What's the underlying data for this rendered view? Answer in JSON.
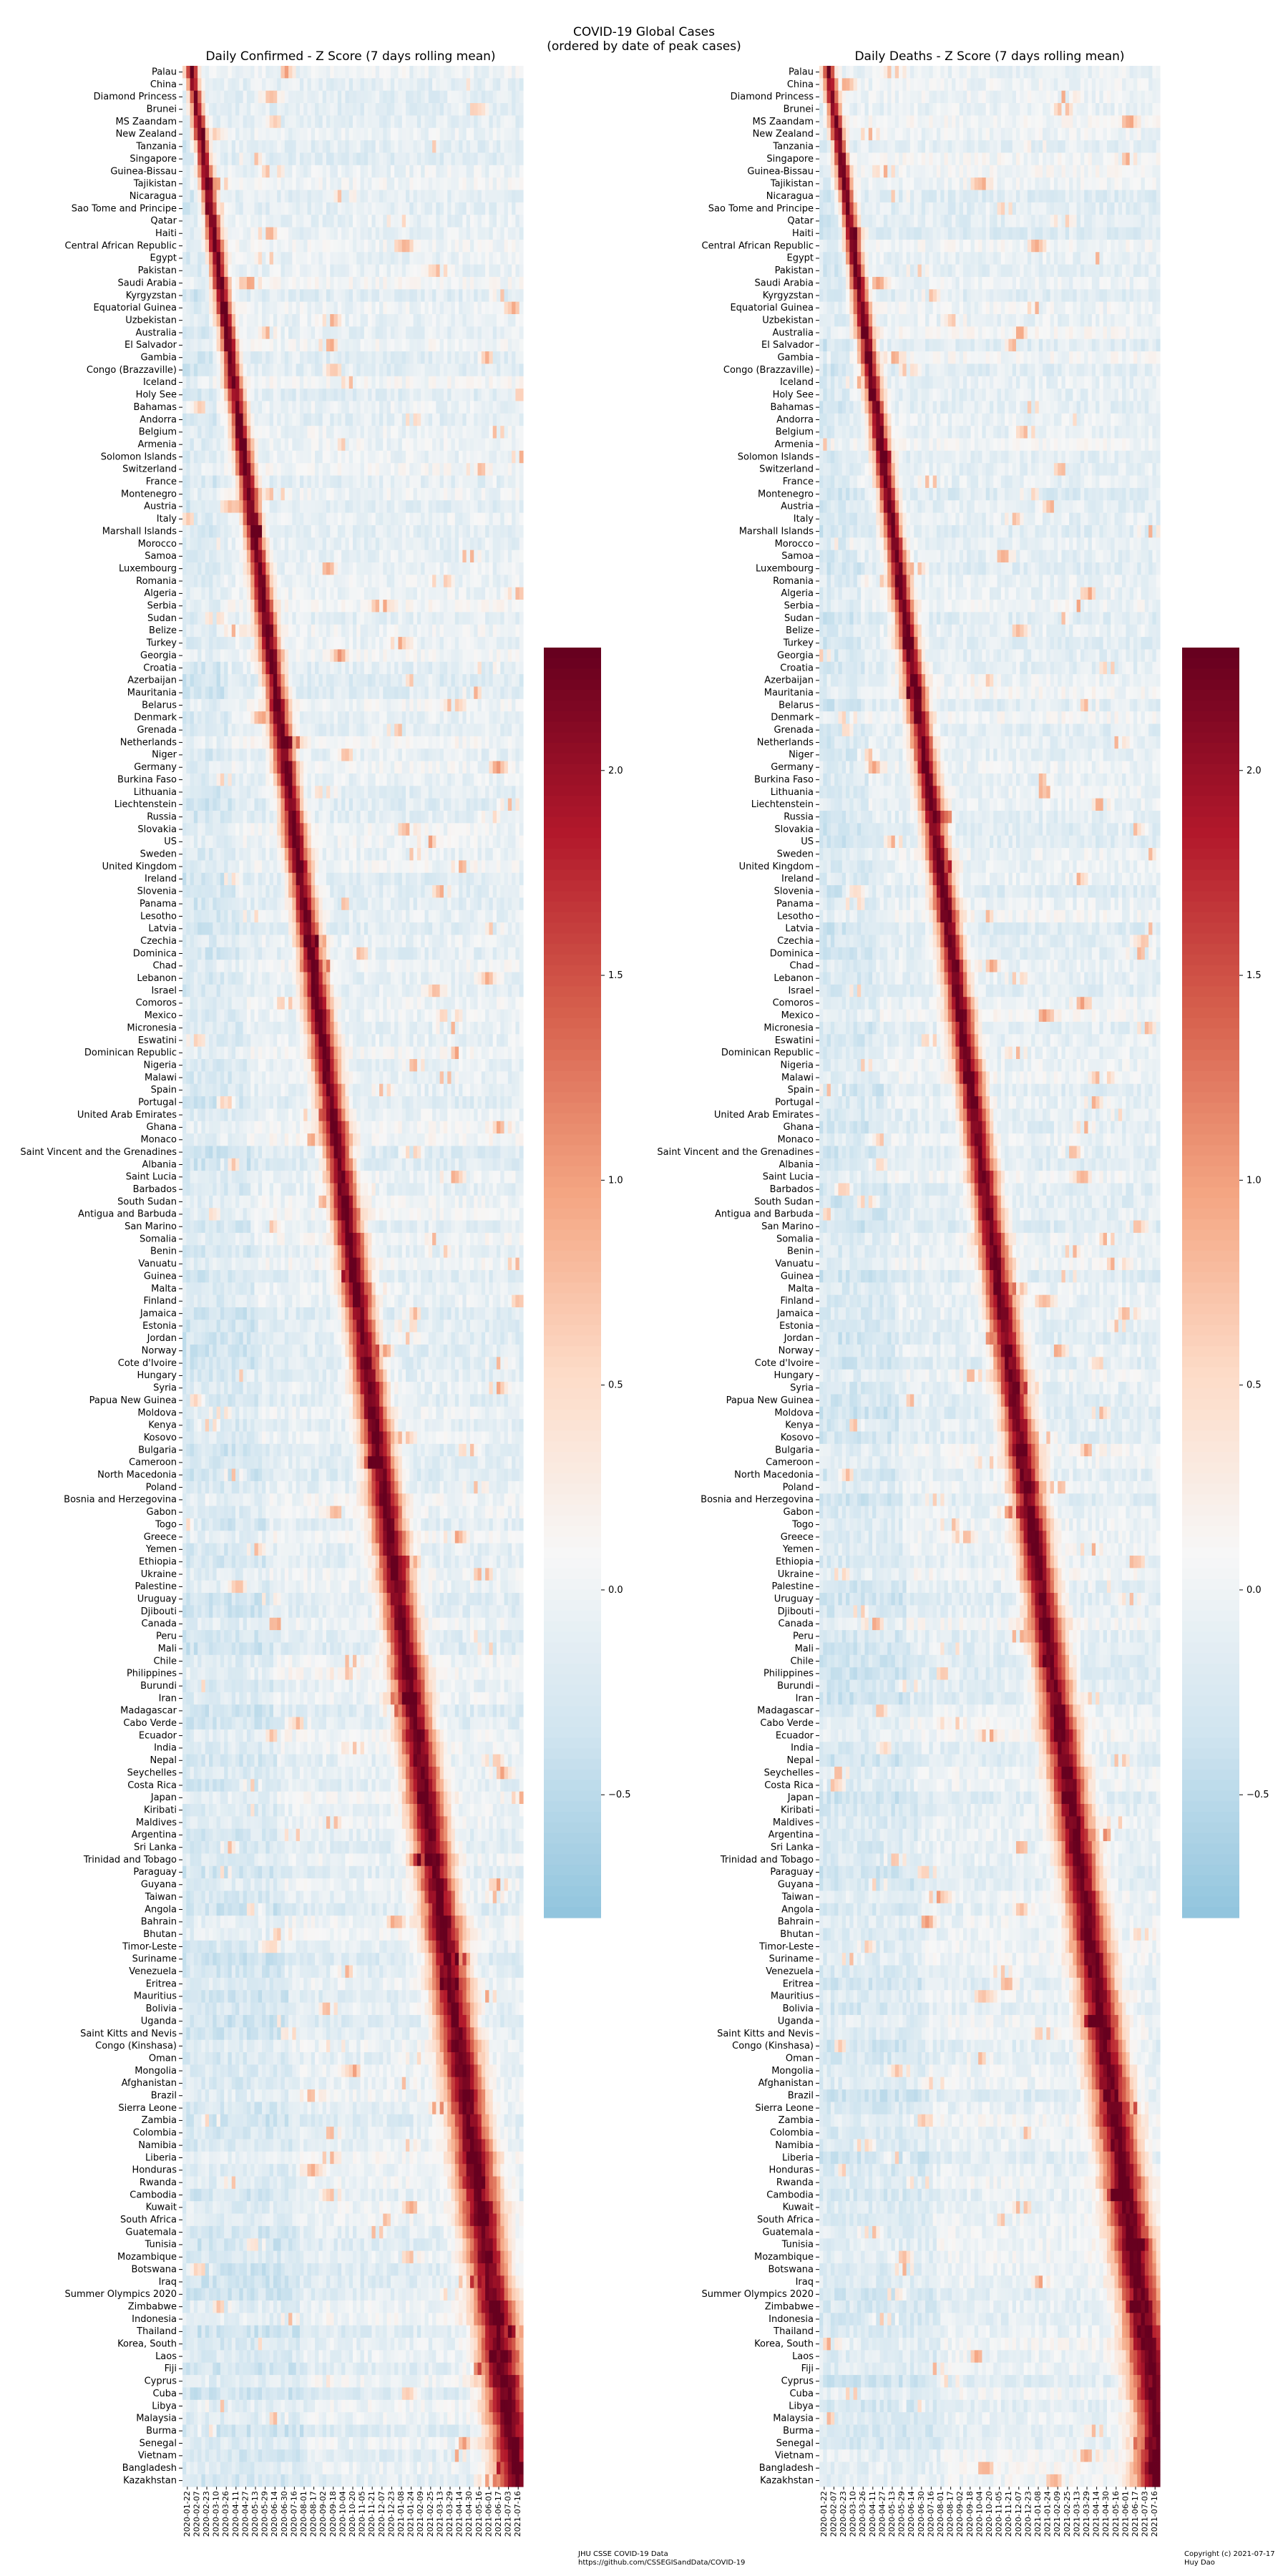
{
  "figure": {
    "suptitle_line1": "COVID-19 Global Cases",
    "suptitle_line2": "(ordered by date of peak cases)",
    "source_line1": "JHU CSSE COVID-19 Data",
    "source_line2": "https://github.com/CSSEGISandData/COVID-19",
    "copyright_line1": "Copyright (c) 2021-07-17",
    "copyright_line2": "Huy Dao"
  },
  "colors": {
    "neg": "#7fb6d5",
    "mid": "#f7f7f7",
    "pos": "#67001f",
    "scale": [
      "#92c5de",
      "#d1e5f0",
      "#f7f7f7",
      "#fddbc7",
      "#f4a582",
      "#d6604d",
      "#b2182b",
      "#67001f"
    ]
  },
  "chart_data": [
    {
      "type": "heatmap",
      "title": "Daily Confirmed - Z Score (7 days rolling mean)",
      "colorbar_ticks": [
        "2.0",
        "1.5",
        "1.0",
        "0.5",
        "0.0",
        "−0.5"
      ],
      "colorbar_values": [
        2.0,
        1.5,
        1.0,
        0.5,
        0.0,
        -0.5
      ],
      "colorbar_range": [
        -0.8,
        2.3
      ],
      "x_tick_labels": [
        "2020-01-22",
        "2020-02-07",
        "2020-02-23",
        "2020-03-10",
        "2020-03-26",
        "2020-04-11",
        "2020-04-27",
        "2020-05-13",
        "2020-05-29",
        "2020-06-14",
        "2020-06-30",
        "2020-07-16",
        "2020-08-01",
        "2020-08-17",
        "2020-09-02",
        "2020-09-18",
        "2020-10-04",
        "2020-10-20",
        "2020-11-05",
        "2020-11-21",
        "2020-12-07",
        "2020-12-23",
        "2021-01-08",
        "2021-01-24",
        "2021-02-09",
        "2021-02-25",
        "2021-03-13",
        "2021-03-29",
        "2021-04-14",
        "2021-04-30",
        "2021-05-16",
        "2021-06-01",
        "2021-06-17",
        "2021-07-03",
        "2021-07-16"
      ]
    },
    {
      "type": "heatmap",
      "title": "Daily Deaths - Z Score (7 days rolling mean)",
      "colorbar_ticks": [
        "2.0",
        "1.5",
        "1.0",
        "0.5",
        "0.0",
        "−0.5"
      ],
      "colorbar_values": [
        2.0,
        1.5,
        1.0,
        0.5,
        0.0,
        -0.5
      ],
      "colorbar_range": [
        -0.8,
        2.3
      ],
      "x_tick_labels": [
        "2020-01-22",
        "2020-02-07",
        "2020-02-23",
        "2020-03-10",
        "2020-03-26",
        "2020-04-11",
        "2020-04-27",
        "2020-05-13",
        "2020-05-29",
        "2020-06-14",
        "2020-06-30",
        "2020-07-16",
        "2020-08-01",
        "2020-08-17",
        "2020-09-02",
        "2020-09-18",
        "2020-10-04",
        "2020-10-20",
        "2020-11-05",
        "2020-11-21",
        "2020-12-07",
        "2020-12-23",
        "2021-01-08",
        "2021-01-24",
        "2021-02-09",
        "2021-02-25",
        "2021-03-13",
        "2021-03-29",
        "2021-04-14",
        "2021-04-30",
        "2021-05-16",
        "2021-06-01",
        "2021-06-17",
        "2021-07-03",
        "2021-07-16"
      ]
    }
  ],
  "rows": [
    "Palau",
    "China",
    "Diamond Princess",
    "Brunei",
    "MS Zaandam",
    "New Zealand",
    "Tanzania",
    "Singapore",
    "Guinea-Bissau",
    "Tajikistan",
    "Nicaragua",
    "Sao Tome and Principe",
    "Qatar",
    "Haiti",
    "Central African Republic",
    "Egypt",
    "Pakistan",
    "Saudi Arabia",
    "Kyrgyzstan",
    "Equatorial Guinea",
    "Uzbekistan",
    "Australia",
    "El Salvador",
    "Gambia",
    "Congo (Brazzaville)",
    "Iceland",
    "Holy See",
    "Bahamas",
    "Andorra",
    "Belgium",
    "Armenia",
    "Solomon Islands",
    "Switzerland",
    "France",
    "Montenegro",
    "Austria",
    "Italy",
    "Marshall Islands",
    "Morocco",
    "Samoa",
    "Luxembourg",
    "Romania",
    "Algeria",
    "Serbia",
    "Sudan",
    "Belize",
    "Turkey",
    "Georgia",
    "Croatia",
    "Azerbaijan",
    "Mauritania",
    "Belarus",
    "Denmark",
    "Grenada",
    "Netherlands",
    "Niger",
    "Germany",
    "Burkina Faso",
    "Lithuania",
    "Liechtenstein",
    "Russia",
    "Slovakia",
    "US",
    "Sweden",
    "United Kingdom",
    "Ireland",
    "Slovenia",
    "Panama",
    "Lesotho",
    "Latvia",
    "Czechia",
    "Dominica",
    "Chad",
    "Lebanon",
    "Israel",
    "Comoros",
    "Mexico",
    "Micronesia",
    "Eswatini",
    "Dominican Republic",
    "Nigeria",
    "Malawi",
    "Spain",
    "Portugal",
    "United Arab Emirates",
    "Ghana",
    "Monaco",
    "Saint Vincent and the Grenadines",
    "Albania",
    "Saint Lucia",
    "Barbados",
    "South Sudan",
    "Antigua and Barbuda",
    "San Marino",
    "Somalia",
    "Benin",
    "Vanuatu",
    "Guinea",
    "Malta",
    "Finland",
    "Jamaica",
    "Estonia",
    "Jordan",
    "Norway",
    "Cote d'Ivoire",
    "Hungary",
    "Syria",
    "Papua New Guinea",
    "Moldova",
    "Kenya",
    "Kosovo",
    "Bulgaria",
    "Cameroon",
    "North Macedonia",
    "Poland",
    "Bosnia and Herzegovina",
    "Gabon",
    "Togo",
    "Greece",
    "Yemen",
    "Ethiopia",
    "Ukraine",
    "Palestine",
    "Uruguay",
    "Djibouti",
    "Canada",
    "Peru",
    "Mali",
    "Chile",
    "Philippines",
    "Burundi",
    "Iran",
    "Madagascar",
    "Cabo Verde",
    "Ecuador",
    "India",
    "Nepal",
    "Seychelles",
    "Costa Rica",
    "Japan",
    "Kiribati",
    "Maldives",
    "Argentina",
    "Sri Lanka",
    "Trinidad and Tobago",
    "Paraguay",
    "Guyana",
    "Taiwan",
    "Angola",
    "Bahrain",
    "Bhutan",
    "Timor-Leste",
    "Suriname",
    "Venezuela",
    "Eritrea",
    "Mauritius",
    "Bolivia",
    "Uganda",
    "Saint Kitts and Nevis",
    "Congo (Kinshasa)",
    "Oman",
    "Mongolia",
    "Afghanistan",
    "Brazil",
    "Sierra Leone",
    "Zambia",
    "Colombia",
    "Namibia",
    "Liberia",
    "Honduras",
    "Rwanda",
    "Cambodia",
    "Kuwait",
    "South Africa",
    "Guatemala",
    "Tunisia",
    "Mozambique",
    "Botswana",
    "Iraq",
    "Summer Olympics 2020",
    "Zimbabwe",
    "Indonesia",
    "Thailand",
    "Korea, South",
    "Laos",
    "Fiji",
    "Cyprus",
    "Cuba",
    "Libya",
    "Malaysia",
    "Burma",
    "Senegal",
    "Vietnam",
    "Bangladesh",
    "Kazakhstan"
  ]
}
